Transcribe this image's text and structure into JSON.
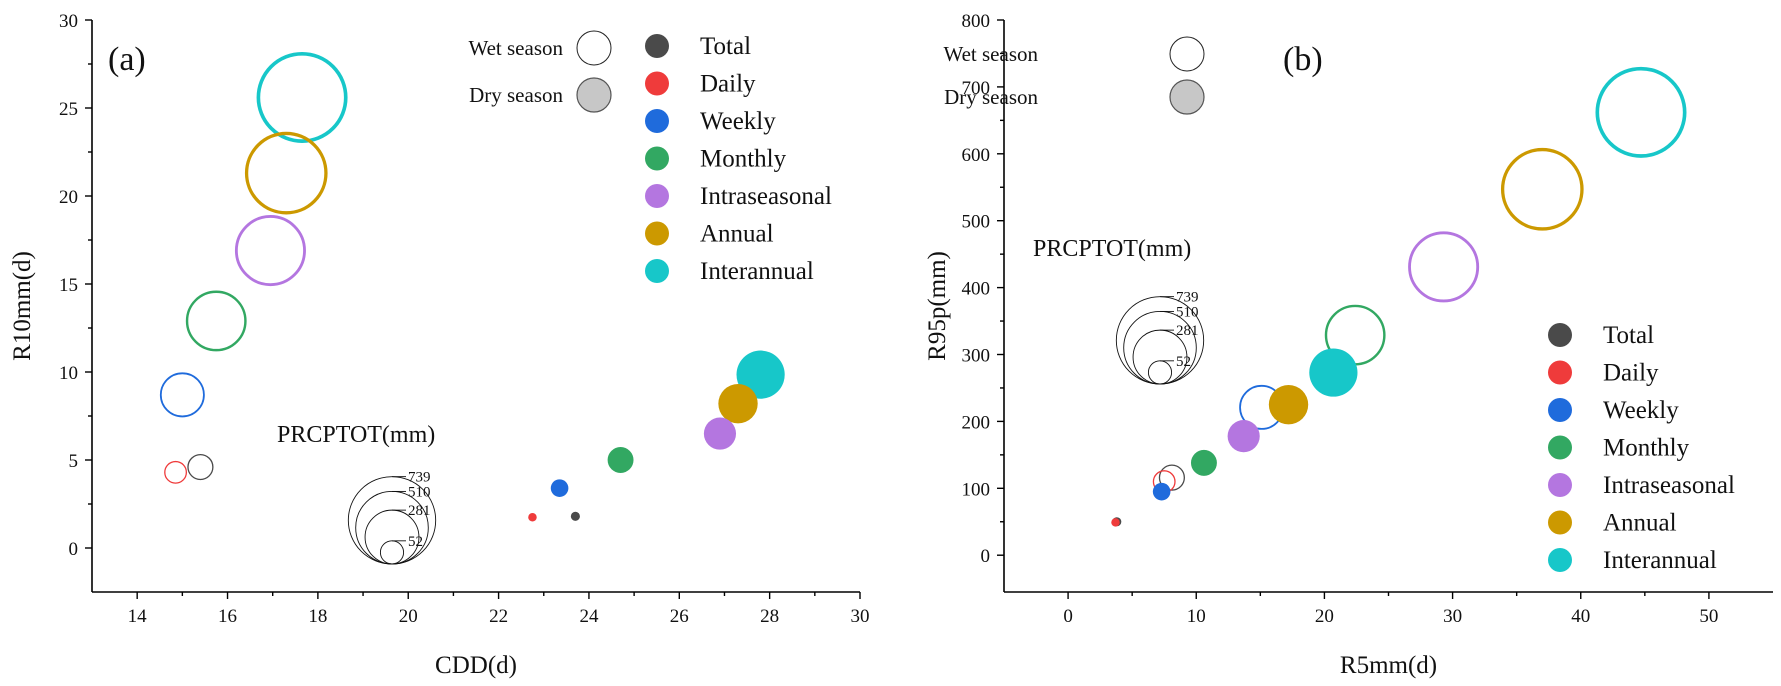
{
  "chart_data": [
    {
      "type": "scatter",
      "panel_label": "(a)",
      "xlabel": "CDD(d)",
      "ylabel": "R10mm(d)",
      "xlim": [
        13,
        30
      ],
      "ylim": [
        -2.5,
        30
      ],
      "x_ticks": [
        14,
        16,
        18,
        20,
        22,
        24,
        26,
        28,
        30
      ],
      "y_ticks": [
        0,
        5,
        10,
        15,
        20,
        25,
        30
      ],
      "size_variable": "PRCPTOT(mm)",
      "size_legend_values": [
        739,
        510,
        281,
        52
      ],
      "size_legend_placement": "bottom-center",
      "season_legend": {
        "wet": "Wet season",
        "dry": "Dry season"
      },
      "season_legend_placement": "top-center",
      "series_legend_placement": "top-right",
      "series": [
        {
          "name": "Total",
          "color": "#4a4a4a",
          "wet": {
            "x": 15.4,
            "y": 4.6,
            "prcptot": 60
          },
          "dry": {
            "x": 23.7,
            "y": 1.8,
            "prcptot": 8
          }
        },
        {
          "name": "Daily",
          "color": "#ef3b3b",
          "wet": {
            "x": 14.85,
            "y": 4.3,
            "prcptot": 45
          },
          "dry": {
            "x": 22.75,
            "y": 1.75,
            "prcptot": 7
          }
        },
        {
          "name": "Weekly",
          "color": "#1f6bdc",
          "wet": {
            "x": 15.0,
            "y": 8.7,
            "prcptot": 180
          },
          "dry": {
            "x": 23.35,
            "y": 3.4,
            "prcptot": 30
          }
        },
        {
          "name": "Monthly",
          "color": "#32a862",
          "wet": {
            "x": 15.75,
            "y": 12.9,
            "prcptot": 330
          },
          "dry": {
            "x": 24.7,
            "y": 5.0,
            "prcptot": 65
          }
        },
        {
          "name": "Intraseasonal",
          "color": "#b476e0",
          "wet": {
            "x": 16.95,
            "y": 16.9,
            "prcptot": 450
          },
          "dry": {
            "x": 26.9,
            "y": 6.5,
            "prcptot": 100
          }
        },
        {
          "name": "Annual",
          "color": "#cc9900",
          "wet": {
            "x": 17.3,
            "y": 21.3,
            "prcptot": 610
          },
          "dry": {
            "x": 27.3,
            "y": 8.2,
            "prcptot": 150
          }
        },
        {
          "name": "Interannual",
          "color": "#17c7c9",
          "wet": {
            "x": 17.65,
            "y": 25.6,
            "prcptot": 739
          },
          "dry": {
            "x": 27.8,
            "y": 9.85,
            "prcptot": 225
          }
        }
      ]
    },
    {
      "type": "scatter",
      "panel_label": "(b)",
      "xlabel": "R5mm(d)",
      "ylabel": "R95p(mm)",
      "xlim": [
        -5,
        55
      ],
      "ylim": [
        -55,
        800
      ],
      "x_ticks": [
        0,
        10,
        20,
        30,
        40,
        50
      ],
      "y_ticks": [
        0,
        100,
        200,
        300,
        400,
        500,
        600,
        700,
        800
      ],
      "size_variable": "PRCPTOT(mm)",
      "size_legend_values": [
        739,
        510,
        281,
        52
      ],
      "size_legend_placement": "center-left",
      "season_legend": {
        "wet": "Wet season",
        "dry": "Dry season"
      },
      "season_legend_placement": "top-left",
      "series_legend_placement": "bottom-right",
      "series": [
        {
          "name": "Total",
          "color": "#4a4a4a",
          "wet": {
            "x": 8.1,
            "y": 116,
            "prcptot": 60
          },
          "dry": {
            "x": 3.8,
            "y": 50,
            "prcptot": 8
          }
        },
        {
          "name": "Daily",
          "color": "#ef3b3b",
          "wet": {
            "x": 7.5,
            "y": 110,
            "prcptot": 45
          },
          "dry": {
            "x": 3.7,
            "y": 49,
            "prcptot": 7
          }
        },
        {
          "name": "Weekly",
          "color": "#1f6bdc",
          "wet": {
            "x": 15.1,
            "y": 221,
            "prcptot": 180
          },
          "dry": {
            "x": 7.3,
            "y": 95,
            "prcptot": 30
          }
        },
        {
          "name": "Monthly",
          "color": "#32a862",
          "wet": {
            "x": 22.4,
            "y": 329,
            "prcptot": 330
          },
          "dry": {
            "x": 10.6,
            "y": 138,
            "prcptot": 65
          }
        },
        {
          "name": "Intraseasonal",
          "color": "#b476e0",
          "wet": {
            "x": 29.3,
            "y": 431,
            "prcptot": 450
          },
          "dry": {
            "x": 13.7,
            "y": 178,
            "prcptot": 100
          }
        },
        {
          "name": "Annual",
          "color": "#cc9900",
          "wet": {
            "x": 37.0,
            "y": 547,
            "prcptot": 610
          },
          "dry": {
            "x": 17.2,
            "y": 225,
            "prcptot": 150
          }
        },
        {
          "name": "Interannual",
          "color": "#17c7c9",
          "wet": {
            "x": 44.7,
            "y": 662,
            "prcptot": 739
          },
          "dry": {
            "x": 20.7,
            "y": 273,
            "prcptot": 225
          }
        }
      ]
    }
  ]
}
